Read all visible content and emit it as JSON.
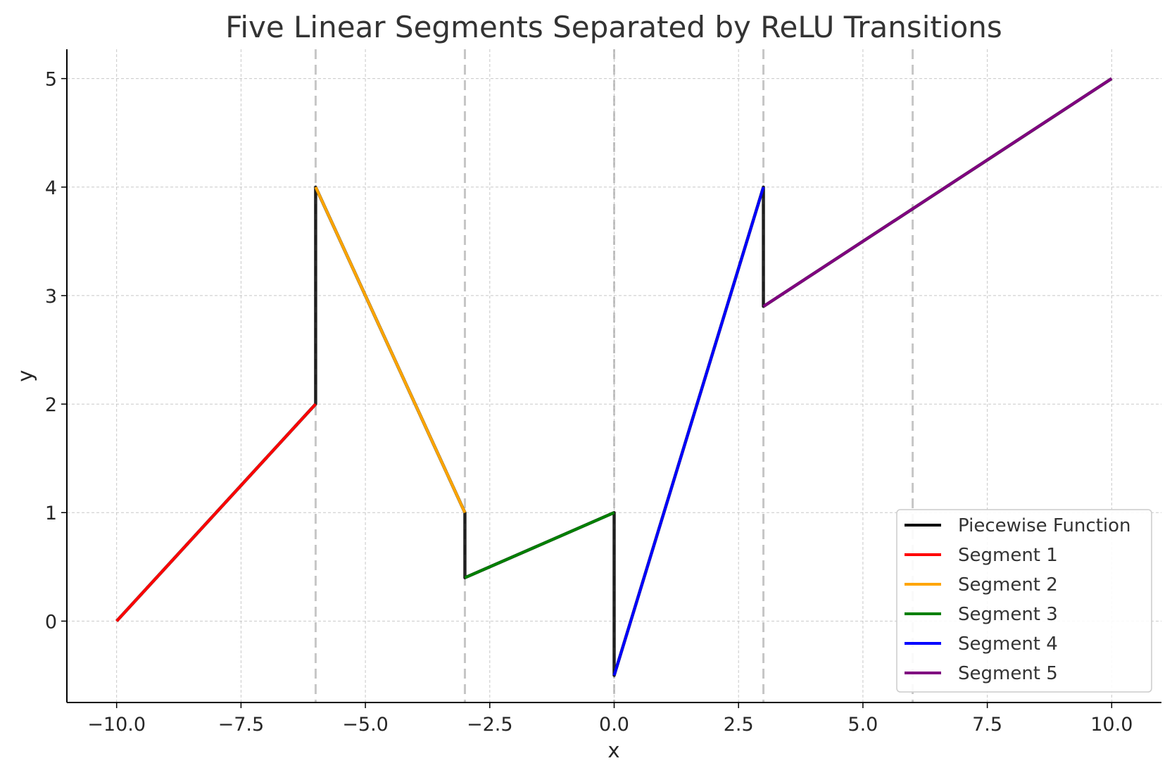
{
  "chart_data": {
    "type": "line",
    "title": "Five Linear Segments Separated by ReLU Transitions",
    "xlabel": "x",
    "ylabel": "y",
    "xlim": [
      -11,
      11
    ],
    "ylim": [
      -0.75,
      5.27
    ],
    "x_ticks": [
      -10,
      -7.5,
      -5,
      -2.5,
      0,
      2.5,
      5,
      7.5,
      10
    ],
    "x_tick_labels": [
      "−10.0",
      "−7.5",
      "−5.0",
      "−2.5",
      "0.0",
      "2.5",
      "5.0",
      "7.5",
      "10.0"
    ],
    "y_ticks": [
      0,
      1,
      2,
      3,
      4,
      5
    ],
    "y_tick_labels": [
      "0",
      "1",
      "2",
      "3",
      "4",
      "5"
    ],
    "grid": true,
    "legend_position": "bottom-right",
    "breakpoints": [
      -6,
      -3,
      0,
      3,
      6
    ],
    "series": [
      {
        "name": "Piecewise Function",
        "color": "#000000",
        "x": [
          -10,
          -6,
          -6,
          -3,
          -3,
          0,
          0,
          3,
          3,
          10
        ],
        "y": [
          0,
          2,
          4,
          1,
          0.4,
          1,
          -0.5,
          4,
          2.9,
          5
        ]
      },
      {
        "name": "Segment 1",
        "color": "#ff0000",
        "x": [
          -10,
          -6
        ],
        "y": [
          0,
          2
        ]
      },
      {
        "name": "Segment 2",
        "color": "#ffa500",
        "x": [
          -6,
          -3
        ],
        "y": [
          4,
          1
        ]
      },
      {
        "name": "Segment 3",
        "color": "#008000",
        "x": [
          -3,
          0
        ],
        "y": [
          0.4,
          1
        ]
      },
      {
        "name": "Segment 4",
        "color": "#0000ff",
        "x": [
          0,
          3
        ],
        "y": [
          -0.5,
          4
        ]
      },
      {
        "name": "Segment 5",
        "color": "#800080",
        "x": [
          3,
          10
        ],
        "y": [
          2.9,
          5
        ]
      }
    ]
  }
}
